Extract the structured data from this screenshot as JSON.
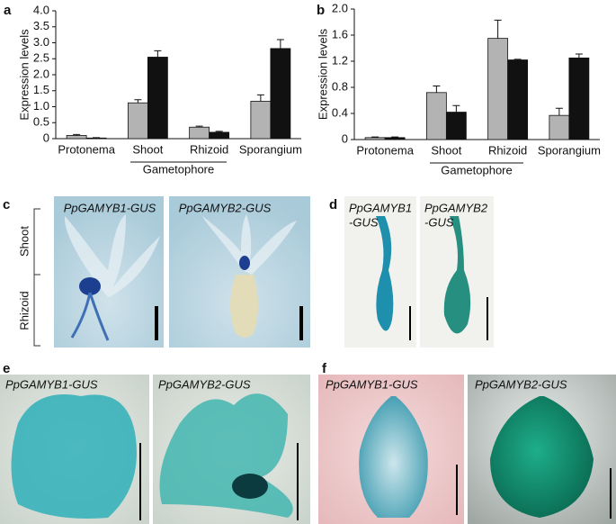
{
  "chart_data": [
    {
      "type": "bar",
      "panel": "a",
      "y_label": "Expression levels",
      "categories": [
        "Protonema",
        "Shoot",
        "Rhizoid",
        "Sporangium"
      ],
      "group_label": "Gametophore",
      "series": [
        {
          "color": "#b3b3b3",
          "values": [
            0.1,
            1.12,
            0.36,
            1.17
          ],
          "errors": [
            0.03,
            0.1,
            0.03,
            0.2
          ]
        },
        {
          "color": "#111111",
          "values": [
            0.02,
            2.55,
            0.2,
            2.82
          ],
          "errors": [
            0.01,
            0.2,
            0.03,
            0.28
          ]
        }
      ],
      "ylim": [
        0,
        4
      ],
      "yticks": [
        0,
        0.5,
        {
          "value": 1,
          "label": "1.0"
        },
        1.5,
        {
          "value": 2,
          "label": "2.0"
        },
        2.5,
        {
          "value": 3,
          "label": "3.0"
        },
        3.5,
        {
          "value": 4,
          "label": "4.0"
        }
      ]
    },
    {
      "type": "bar",
      "panel": "b",
      "y_label": "Expression levels",
      "categories": [
        "Protonema",
        "Shoot",
        "Rhizoid",
        "Sporangium"
      ],
      "group_label": "Gametophore",
      "series": [
        {
          "color": "#b3b3b3",
          "values": [
            0.03,
            0.72,
            1.55,
            0.37
          ],
          "errors": [
            0.01,
            0.1,
            0.28,
            0.11
          ]
        },
        {
          "color": "#111111",
          "values": [
            0.03,
            0.42,
            1.22,
            1.25
          ],
          "errors": [
            0.01,
            0.1,
            0.01,
            0.06
          ]
        }
      ],
      "ylim": [
        0,
        2
      ],
      "yticks": [
        0,
        0.4,
        0.8,
        1.2,
        1.6,
        {
          "value": 2,
          "label": "2.0"
        }
      ]
    }
  ],
  "panels": {
    "c": {
      "label": "c",
      "captions": [
        "PpGAMYB1-GUS",
        "PpGAMYB2-GUS"
      ],
      "regions": [
        "Shoot",
        "Rhizoid"
      ]
    },
    "d": {
      "label": "d",
      "captions": [
        [
          "PpGAMYB1",
          "-GUS"
        ],
        [
          "PpGAMYB2",
          "-GUS"
        ]
      ]
    },
    "e": {
      "label": "e",
      "captions": [
        "PpGAMYB1-GUS",
        "PpGAMYB2-GUS"
      ]
    },
    "f": {
      "label": "f",
      "captions": [
        "PpGAMYB1-GUS",
        "PpGAMYB2-GUS"
      ]
    }
  }
}
